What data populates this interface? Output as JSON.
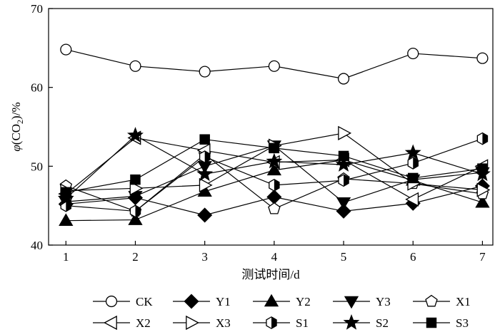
{
  "chart_data": {
    "type": "line",
    "title": "",
    "xlabel": "测试时间/d",
    "ylabel_parts": {
      "sym": "φ",
      "open": "(CO",
      "sub": "2",
      "close": ")/%"
    },
    "x": [
      1,
      2,
      3,
      4,
      5,
      6,
      7
    ],
    "xlim": [
      0.75,
      7.15
    ],
    "ylim": [
      40,
      70
    ],
    "yticks": [
      40,
      50,
      60,
      70
    ],
    "grid": false,
    "legend_position": "bottom",
    "series": [
      {
        "name": "CK",
        "marker": "circle",
        "values": [
          64.8,
          62.7,
          62.0,
          62.7,
          61.1,
          64.3,
          63.7
        ]
      },
      {
        "name": "Y1",
        "marker": "diamond",
        "values": [
          45.2,
          46.0,
          43.8,
          46.1,
          44.3,
          45.3,
          47.5
        ]
      },
      {
        "name": "Y2",
        "marker": "triangle-up",
        "values": [
          43.1,
          43.2,
          46.8,
          49.5,
          50.8,
          48.2,
          45.4
        ]
      },
      {
        "name": "Y3",
        "marker": "triangle-down",
        "values": [
          45.5,
          46.2,
          50.0,
          52.6,
          45.4,
          48.3,
          49.2
        ]
      },
      {
        "name": "X1",
        "marker": "pentagon",
        "values": [
          47.5,
          44.3,
          51.5,
          44.6,
          48.4,
          47.8,
          46.5
        ]
      },
      {
        "name": "X2",
        "marker": "triangle-left",
        "values": [
          46.5,
          53.6,
          52.0,
          50.5,
          50.8,
          45.8,
          50.0
        ]
      },
      {
        "name": "X3",
        "marker": "triangle-right",
        "values": [
          46.9,
          47.2,
          47.6,
          52.6,
          54.2,
          47.8,
          47.0
        ]
      },
      {
        "name": "S1",
        "marker": "hexagon-half",
        "values": [
          45.0,
          44.3,
          51.2,
          47.6,
          48.2,
          50.4,
          53.5
        ]
      },
      {
        "name": "S2",
        "marker": "star",
        "values": [
          45.9,
          53.9,
          49.0,
          50.6,
          50.2,
          51.7,
          49.0
        ]
      },
      {
        "name": "S3",
        "marker": "square",
        "values": [
          46.7,
          48.3,
          53.4,
          52.3,
          51.3,
          48.5,
          49.7
        ]
      }
    ]
  }
}
